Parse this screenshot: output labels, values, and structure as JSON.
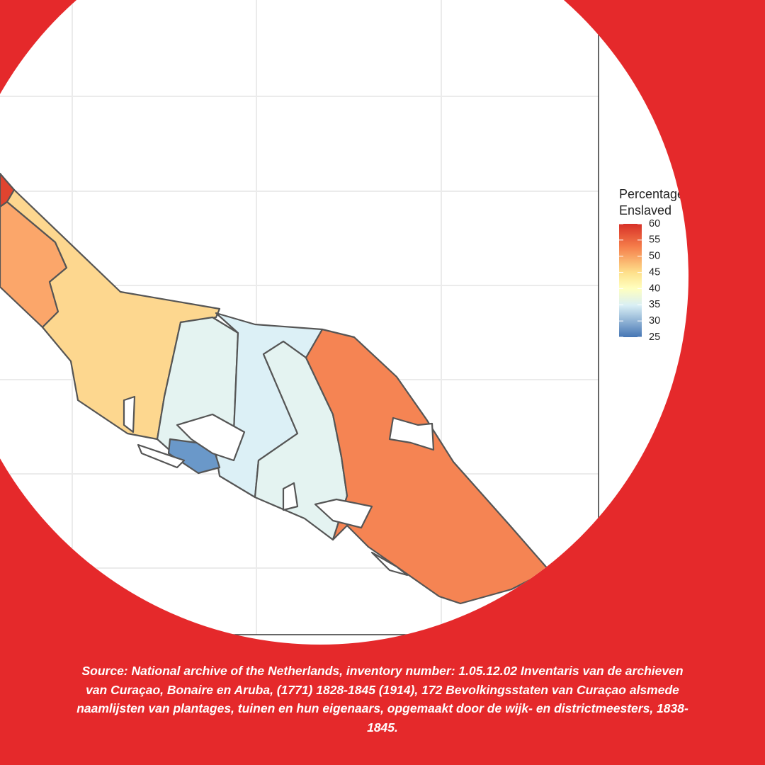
{
  "legend": {
    "title": [
      "Percentage",
      "Enslaved"
    ],
    "range": [
      25,
      60
    ],
    "ticks": [
      60,
      55,
      50,
      45,
      40,
      35,
      30,
      25
    ]
  },
  "source": "Source: National archive of the Netherlands, inventory number: 1.05.12.02 Inventaris van de archieven van Curaçao, Bonaire en Aruba, (1771) 1828-1845 (1914), 172 Bevolkingsstaten van Curaçao alsmede naamlijsten van plantages, tuinen en hun eigenaars, opgemaakt door de wijk- en districtmeesters, 1838-1845."
}
